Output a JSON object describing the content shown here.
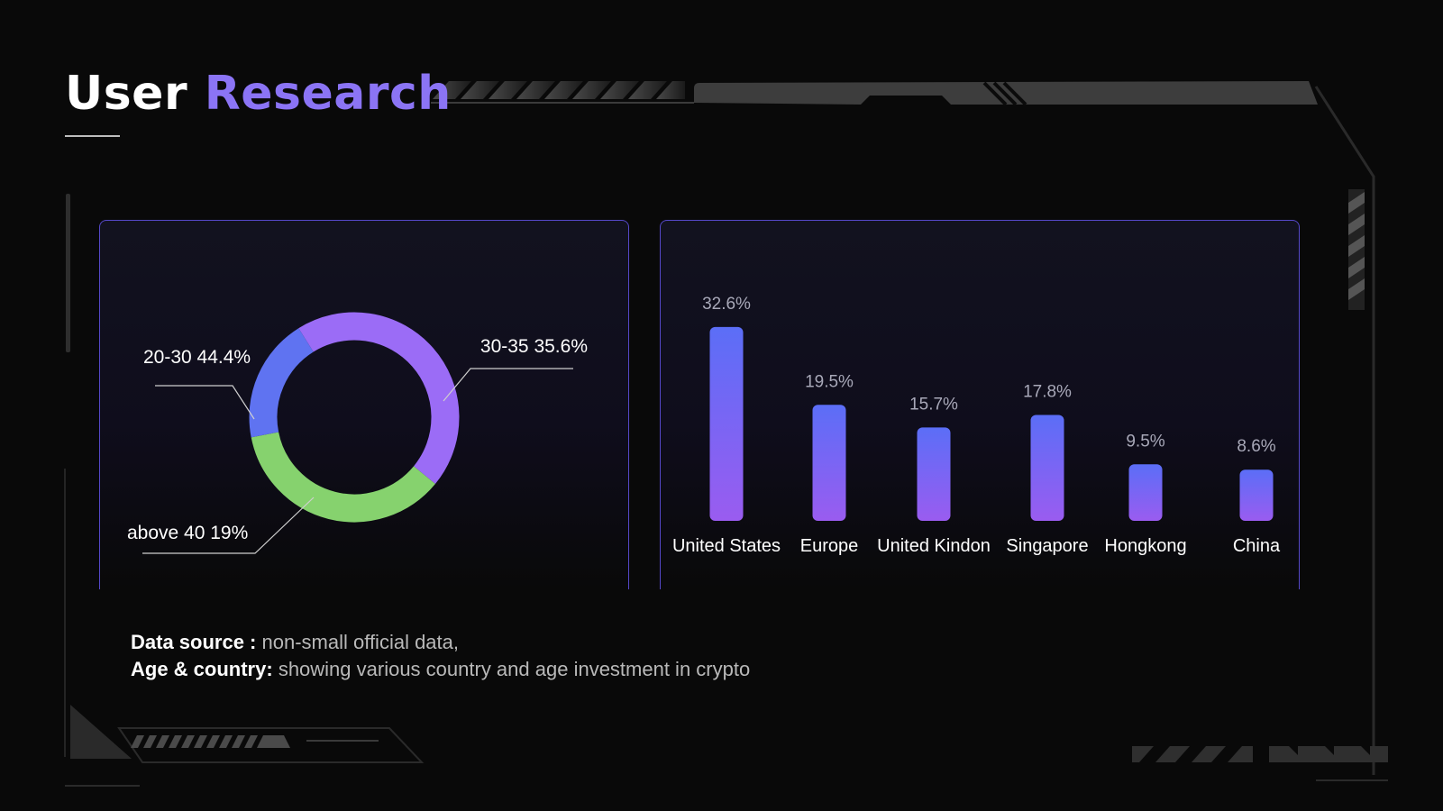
{
  "slide": {
    "title_part1": "User",
    "title_part2": "Research"
  },
  "colors": {
    "background": "#090909",
    "accent": "#8b74f5",
    "panel_border": "#5548c8",
    "bar_top": "#5b6ef7",
    "bar_bottom": "#9a5cf0",
    "slice_20_30": "#9b6cf6",
    "slice_30_35": "#86d26e",
    "slice_above_40": "#5f73f1"
  },
  "chart_data": [
    {
      "type": "pie",
      "style": "donut",
      "title": "",
      "slices": [
        {
          "label": "20-30",
          "value": 44.4,
          "display": "44.4%"
        },
        {
          "label": "30-35",
          "value": 35.6,
          "display": "35.6%"
        },
        {
          "label": "above 40",
          "value": 19,
          "display": "19%"
        }
      ],
      "legend": "none"
    },
    {
      "type": "bar",
      "title": "",
      "xlabel": "",
      "ylabel": "",
      "categories": [
        "United States",
        "Europe",
        "United Kindon",
        "Singapore",
        "Hongkong",
        "China"
      ],
      "values": [
        32.6,
        19.5,
        15.7,
        17.8,
        9.5,
        8.6
      ],
      "value_labels": [
        "32.6%",
        "19.5%",
        "15.7%",
        "17.8%",
        "9.5%",
        "8.6%"
      ],
      "grid": false,
      "legend": "none"
    }
  ],
  "notes": {
    "source_label": "Data source :",
    "source_value": "non-small official data,",
    "age_label": "Age & country:",
    "age_value": "showing various country and age investment in crypto"
  }
}
